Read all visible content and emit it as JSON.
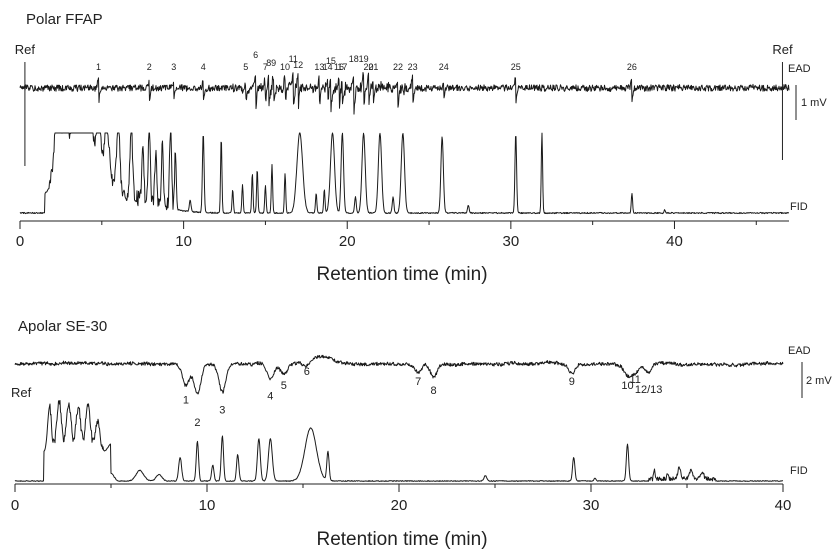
{
  "chart_data": [
    {
      "type": "line",
      "title": "Polar FFAP",
      "xlabel": "Retention time (min)",
      "xlim": [
        0,
        47
      ],
      "xticks": [
        0,
        10,
        20,
        30,
        40
      ],
      "traces": [
        {
          "name": "EAD",
          "label": "EAD"
        },
        {
          "name": "FID",
          "label": "FID"
        }
      ],
      "scale_bar": "1 mV",
      "ref_markers": [
        {
          "label": "Ref",
          "x": 0.3
        },
        {
          "label": "Ref",
          "x": 46.6
        }
      ],
      "ead_responses": [
        {
          "label": "1",
          "x": 4.8,
          "amp": 0.6
        },
        {
          "label": "2",
          "x": 7.9,
          "amp": 0.5
        },
        {
          "label": "3",
          "x": 9.4,
          "amp": 0.4
        },
        {
          "label": "4",
          "x": 11.2,
          "amp": 0.6
        },
        {
          "label": "5",
          "x": 13.8,
          "amp": 0.5
        },
        {
          "label": "6",
          "x": 14.4,
          "amp": 1.0
        },
        {
          "label": "7",
          "x": 15.0,
          "amp": 0.5
        },
        {
          "label": "8",
          "x": 15.2,
          "amp": 0.7
        },
        {
          "label": "9",
          "x": 15.5,
          "amp": 0.7
        },
        {
          "label": "10",
          "x": 16.2,
          "amp": 0.6
        },
        {
          "label": "11",
          "x": 16.7,
          "amp": 1.0
        },
        {
          "label": "12",
          "x": 17.0,
          "amp": 0.8
        },
        {
          "label": "13",
          "x": 18.3,
          "amp": 0.7
        },
        {
          "label": "14",
          "x": 18.8,
          "amp": 0.7
        },
        {
          "label": "15",
          "x": 19.0,
          "amp": 0.9
        },
        {
          "label": "16",
          "x": 19.5,
          "amp": 0.8
        },
        {
          "label": "17",
          "x": 19.7,
          "amp": 0.6
        },
        {
          "label": "18",
          "x": 20.4,
          "amp": 1.0
        },
        {
          "label": "19",
          "x": 21.0,
          "amp": 1.0
        },
        {
          "label": "20",
          "x": 21.3,
          "amp": 0.8
        },
        {
          "label": "21",
          "x": 21.6,
          "amp": 0.6
        },
        {
          "label": "22",
          "x": 23.1,
          "amp": 0.8
        },
        {
          "label": "23",
          "x": 24.0,
          "amp": 0.6
        },
        {
          "label": "24",
          "x": 25.9,
          "amp": 0.5
        },
        {
          "label": "25",
          "x": 30.3,
          "amp": 0.7
        },
        {
          "label": "26",
          "x": 37.4,
          "amp": 0.5
        }
      ],
      "fid_peaks": [
        {
          "x": 2.3,
          "h": 1.0,
          "w": 0.35
        },
        {
          "x": 2.8,
          "h": 0.95,
          "w": 0.3
        },
        {
          "x": 3.3,
          "h": 0.8,
          "w": 0.3
        },
        {
          "x": 3.8,
          "h": 1.0,
          "w": 0.3
        },
        {
          "x": 4.3,
          "h": 0.9,
          "w": 0.3
        },
        {
          "x": 4.8,
          "h": 1.0,
          "w": 0.25
        },
        {
          "x": 5.3,
          "h": 0.75,
          "w": 0.3
        },
        {
          "x": 6.0,
          "h": 0.8,
          "w": 0.2
        },
        {
          "x": 6.8,
          "h": 0.9,
          "w": 0.15
        },
        {
          "x": 7.5,
          "h": 0.7,
          "w": 0.12
        },
        {
          "x": 7.9,
          "h": 1.0,
          "w": 0.12
        },
        {
          "x": 8.3,
          "h": 0.6,
          "w": 0.12
        },
        {
          "x": 8.7,
          "h": 0.8,
          "w": 0.1
        },
        {
          "x": 9.2,
          "h": 1.0,
          "w": 0.12
        },
        {
          "x": 9.5,
          "h": 0.7,
          "w": 0.1
        },
        {
          "x": 10.4,
          "h": 0.15,
          "w": 0.1
        },
        {
          "x": 11.2,
          "h": 1.0,
          "w": 0.1
        },
        {
          "x": 12.3,
          "h": 0.95,
          "w": 0.08
        },
        {
          "x": 13.0,
          "h": 0.3,
          "w": 0.08
        },
        {
          "x": 13.6,
          "h": 0.35,
          "w": 0.08
        },
        {
          "x": 14.2,
          "h": 0.5,
          "w": 0.08
        },
        {
          "x": 14.5,
          "h": 0.55,
          "w": 0.08
        },
        {
          "x": 15.0,
          "h": 0.35,
          "w": 0.08
        },
        {
          "x": 15.4,
          "h": 0.6,
          "w": 0.08
        },
        {
          "x": 16.2,
          "h": 0.5,
          "w": 0.08
        },
        {
          "x": 17.1,
          "h": 1.0,
          "w": 0.35
        },
        {
          "x": 18.1,
          "h": 0.25,
          "w": 0.08
        },
        {
          "x": 18.6,
          "h": 0.3,
          "w": 0.08
        },
        {
          "x": 19.1,
          "h": 1.0,
          "w": 0.25
        },
        {
          "x": 19.7,
          "h": 1.0,
          "w": 0.15
        },
        {
          "x": 20.5,
          "h": 0.2,
          "w": 0.1
        },
        {
          "x": 21.0,
          "h": 1.0,
          "w": 0.2
        },
        {
          "x": 22.0,
          "h": 1.0,
          "w": 0.2
        },
        {
          "x": 22.8,
          "h": 0.2,
          "w": 0.1
        },
        {
          "x": 23.4,
          "h": 1.0,
          "w": 0.2
        },
        {
          "x": 25.8,
          "h": 0.95,
          "w": 0.15
        },
        {
          "x": 27.4,
          "h": 0.1,
          "w": 0.1
        },
        {
          "x": 30.3,
          "h": 1.0,
          "w": 0.1
        },
        {
          "x": 31.9,
          "h": 1.0,
          "w": 0.08
        },
        {
          "x": 37.4,
          "h": 0.25,
          "w": 0.08
        },
        {
          "x": 39.4,
          "h": 0.04,
          "w": 0.08
        }
      ]
    },
    {
      "type": "line",
      "title": "Apolar SE-30",
      "xlabel": "Retention time (min)",
      "xlim": [
        0,
        40
      ],
      "xticks": [
        0,
        10,
        20,
        30,
        40
      ],
      "traces": [
        {
          "name": "EAD",
          "label": "EAD"
        },
        {
          "name": "FID",
          "label": "FID"
        }
      ],
      "scale_bar": "2 mV",
      "ref_markers": [
        {
          "label": "Ref",
          "x": 0.5
        }
      ],
      "ead_responses": [
        {
          "label": "1",
          "x": 8.9,
          "amp": 0.7
        },
        {
          "label": "2",
          "x": 9.5,
          "amp": 1.0
        },
        {
          "label": "3",
          "x": 10.8,
          "amp": 0.9
        },
        {
          "label": "4",
          "x": 13.3,
          "amp": 0.5
        },
        {
          "label": "5",
          "x": 14.0,
          "amp": 0.35
        },
        {
          "label": "6",
          "x": 15.2,
          "amp": 0.2
        },
        {
          "label": "7",
          "x": 21.0,
          "amp": 0.3
        },
        {
          "label": "8",
          "x": 21.8,
          "amp": 0.45
        },
        {
          "label": "9",
          "x": 29.0,
          "amp": 0.3
        },
        {
          "label": "10",
          "x": 31.9,
          "amp": 0.35
        },
        {
          "label": "11",
          "x": 32.3,
          "amp": 0.3
        },
        {
          "label": "12/13",
          "x": 33.0,
          "amp": 0.3
        }
      ],
      "fid_peaks": [
        {
          "x": 1.8,
          "h": 0.85,
          "w": 0.2
        },
        {
          "x": 2.3,
          "h": 0.95,
          "w": 0.25
        },
        {
          "x": 2.8,
          "h": 0.9,
          "w": 0.25
        },
        {
          "x": 3.3,
          "h": 0.85,
          "w": 0.25
        },
        {
          "x": 3.8,
          "h": 0.9,
          "w": 0.25
        },
        {
          "x": 4.3,
          "h": 0.6,
          "w": 0.25
        },
        {
          "x": 5.0,
          "h": 0.15,
          "w": 0.3
        },
        {
          "x": 6.5,
          "h": 0.2,
          "w": 0.4
        },
        {
          "x": 7.5,
          "h": 0.12,
          "w": 0.3
        },
        {
          "x": 8.6,
          "h": 0.45,
          "w": 0.15
        },
        {
          "x": 9.5,
          "h": 0.75,
          "w": 0.12
        },
        {
          "x": 10.3,
          "h": 0.3,
          "w": 0.12
        },
        {
          "x": 10.8,
          "h": 0.85,
          "w": 0.12
        },
        {
          "x": 11.6,
          "h": 0.5,
          "w": 0.12
        },
        {
          "x": 12.7,
          "h": 0.8,
          "w": 0.15
        },
        {
          "x": 13.3,
          "h": 0.8,
          "w": 0.2
        },
        {
          "x": 15.4,
          "h": 1.0,
          "w": 0.6
        },
        {
          "x": 16.3,
          "h": 0.55,
          "w": 0.12
        },
        {
          "x": 24.5,
          "h": 0.1,
          "w": 0.15
        },
        {
          "x": 29.1,
          "h": 0.45,
          "w": 0.12
        },
        {
          "x": 30.2,
          "h": 0.05,
          "w": 0.1
        },
        {
          "x": 31.9,
          "h": 0.7,
          "w": 0.12
        },
        {
          "x": 33.3,
          "h": 0.15,
          "w": 0.08
        },
        {
          "x": 34.0,
          "h": 0.1,
          "w": 0.08
        },
        {
          "x": 34.6,
          "h": 0.2,
          "w": 0.15
        },
        {
          "x": 35.2,
          "h": 0.15,
          "w": 0.15
        },
        {
          "x": 35.8,
          "h": 0.12,
          "w": 0.15
        }
      ]
    }
  ]
}
